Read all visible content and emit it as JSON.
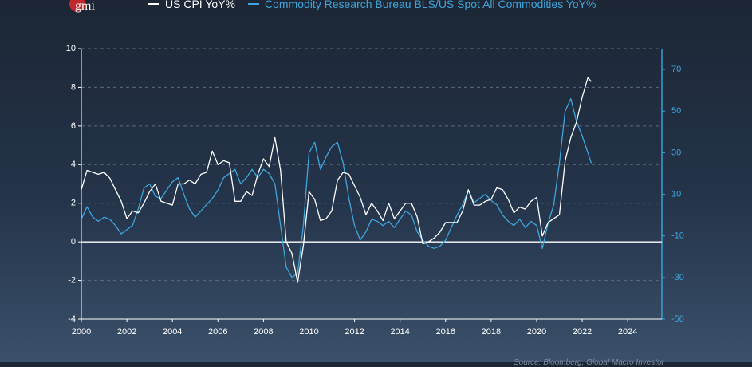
{
  "logo": {
    "text": "gmi",
    "color": "#c0282d"
  },
  "source": "Source: Bloomberg, Global Macro Investor",
  "chart_data": {
    "type": "line",
    "legend_position": "top",
    "series": [
      {
        "name": "US CPI YoY%",
        "axis": "left",
        "color": "#ffffff",
        "points": [
          [
            2000.0,
            2.7
          ],
          [
            2000.25,
            3.7
          ],
          [
            2000.5,
            3.6
          ],
          [
            2000.75,
            3.5
          ],
          [
            2001.0,
            3.6
          ],
          [
            2001.25,
            3.3
          ],
          [
            2001.5,
            2.7
          ],
          [
            2001.75,
            2.1
          ],
          [
            2002.0,
            1.2
          ],
          [
            2002.25,
            1.6
          ],
          [
            2002.5,
            1.5
          ],
          [
            2002.75,
            2.0
          ],
          [
            2003.0,
            2.6
          ],
          [
            2003.25,
            3.0
          ],
          [
            2003.5,
            2.1
          ],
          [
            2003.75,
            2.0
          ],
          [
            2004.0,
            1.9
          ],
          [
            2004.25,
            3.0
          ],
          [
            2004.5,
            3.0
          ],
          [
            2004.75,
            3.2
          ],
          [
            2005.0,
            3.0
          ],
          [
            2005.25,
            3.5
          ],
          [
            2005.5,
            3.6
          ],
          [
            2005.75,
            4.7
          ],
          [
            2006.0,
            4.0
          ],
          [
            2006.25,
            4.2
          ],
          [
            2006.5,
            4.1
          ],
          [
            2006.75,
            2.1
          ],
          [
            2007.0,
            2.1
          ],
          [
            2007.25,
            2.6
          ],
          [
            2007.5,
            2.4
          ],
          [
            2007.75,
            3.5
          ],
          [
            2008.0,
            4.3
          ],
          [
            2008.25,
            3.9
          ],
          [
            2008.5,
            5.4
          ],
          [
            2008.75,
            3.7
          ],
          [
            2009.0,
            0.0
          ],
          [
            2009.25,
            -0.6
          ],
          [
            2009.5,
            -2.1
          ],
          [
            2009.75,
            -0.2
          ],
          [
            2010.0,
            2.6
          ],
          [
            2010.25,
            2.2
          ],
          [
            2010.5,
            1.1
          ],
          [
            2010.75,
            1.2
          ],
          [
            2011.0,
            1.6
          ],
          [
            2011.25,
            3.2
          ],
          [
            2011.5,
            3.6
          ],
          [
            2011.75,
            3.5
          ],
          [
            2012.0,
            2.9
          ],
          [
            2012.25,
            2.3
          ],
          [
            2012.5,
            1.4
          ],
          [
            2012.75,
            2.0
          ],
          [
            2013.0,
            1.6
          ],
          [
            2013.25,
            1.1
          ],
          [
            2013.5,
            2.0
          ],
          [
            2013.75,
            1.2
          ],
          [
            2014.0,
            1.6
          ],
          [
            2014.25,
            2.0
          ],
          [
            2014.5,
            2.0
          ],
          [
            2014.75,
            1.3
          ],
          [
            2015.0,
            -0.1
          ],
          [
            2015.25,
            0.0
          ],
          [
            2015.5,
            0.2
          ],
          [
            2015.75,
            0.5
          ],
          [
            2016.0,
            1.0
          ],
          [
            2016.25,
            1.0
          ],
          [
            2016.5,
            1.0
          ],
          [
            2016.75,
            1.6
          ],
          [
            2017.0,
            2.7
          ],
          [
            2017.25,
            1.9
          ],
          [
            2017.5,
            1.9
          ],
          [
            2017.75,
            2.1
          ],
          [
            2018.0,
            2.2
          ],
          [
            2018.25,
            2.8
          ],
          [
            2018.5,
            2.7
          ],
          [
            2018.75,
            2.2
          ],
          [
            2019.0,
            1.5
          ],
          [
            2019.25,
            1.8
          ],
          [
            2019.5,
            1.7
          ],
          [
            2019.75,
            2.1
          ],
          [
            2020.0,
            2.3
          ],
          [
            2020.25,
            0.3
          ],
          [
            2020.5,
            1.0
          ],
          [
            2020.75,
            1.2
          ],
          [
            2021.0,
            1.4
          ],
          [
            2021.25,
            4.2
          ],
          [
            2021.5,
            5.4
          ],
          [
            2021.75,
            6.2
          ],
          [
            2022.0,
            7.5
          ],
          [
            2022.25,
            8.5
          ],
          [
            2022.4,
            8.3
          ]
        ]
      },
      {
        "name": "Commodity Research Bureau BLS/US Spot All Commodities YoY%",
        "axis": "right",
        "color": "#3fa5dc",
        "points": [
          [
            2000.0,
            -2
          ],
          [
            2000.25,
            4
          ],
          [
            2000.5,
            -1
          ],
          [
            2000.75,
            -3
          ],
          [
            2001.0,
            -1
          ],
          [
            2001.25,
            -2
          ],
          [
            2001.5,
            -5
          ],
          [
            2001.75,
            -9
          ],
          [
            2002.0,
            -7
          ],
          [
            2002.25,
            -5
          ],
          [
            2002.5,
            3
          ],
          [
            2002.75,
            13
          ],
          [
            2003.0,
            15
          ],
          [
            2003.25,
            9
          ],
          [
            2003.5,
            8
          ],
          [
            2003.75,
            12
          ],
          [
            2004.0,
            16
          ],
          [
            2004.25,
            18
          ],
          [
            2004.5,
            10
          ],
          [
            2004.75,
            3
          ],
          [
            2005.0,
            -1
          ],
          [
            2005.25,
            2
          ],
          [
            2005.5,
            5
          ],
          [
            2005.75,
            8
          ],
          [
            2006.0,
            12
          ],
          [
            2006.25,
            18
          ],
          [
            2006.5,
            20
          ],
          [
            2006.75,
            22
          ],
          [
            2007.0,
            15
          ],
          [
            2007.25,
            18
          ],
          [
            2007.5,
            22
          ],
          [
            2007.75,
            18
          ],
          [
            2008.0,
            22
          ],
          [
            2008.25,
            20
          ],
          [
            2008.5,
            15
          ],
          [
            2008.75,
            -5
          ],
          [
            2009.0,
            -25
          ],
          [
            2009.25,
            -30
          ],
          [
            2009.5,
            -28
          ],
          [
            2009.75,
            -5
          ],
          [
            2010.0,
            30
          ],
          [
            2010.25,
            35
          ],
          [
            2010.5,
            22
          ],
          [
            2010.75,
            28
          ],
          [
            2011.0,
            33
          ],
          [
            2011.25,
            35
          ],
          [
            2011.5,
            25
          ],
          [
            2011.75,
            8
          ],
          [
            2012.0,
            -5
          ],
          [
            2012.25,
            -12
          ],
          [
            2012.5,
            -8
          ],
          [
            2012.75,
            -2
          ],
          [
            2013.0,
            -3
          ],
          [
            2013.25,
            -5
          ],
          [
            2013.5,
            -3
          ],
          [
            2013.75,
            -6
          ],
          [
            2014.0,
            -2
          ],
          [
            2014.25,
            2
          ],
          [
            2014.5,
            0
          ],
          [
            2014.75,
            -8
          ],
          [
            2015.0,
            -12
          ],
          [
            2015.25,
            -15
          ],
          [
            2015.5,
            -16
          ],
          [
            2015.75,
            -15
          ],
          [
            2016.0,
            -12
          ],
          [
            2016.25,
            -6
          ],
          [
            2016.5,
            0
          ],
          [
            2016.75,
            5
          ],
          [
            2017.0,
            12
          ],
          [
            2017.25,
            6
          ],
          [
            2017.5,
            8
          ],
          [
            2017.75,
            10
          ],
          [
            2018.0,
            7
          ],
          [
            2018.25,
            5
          ],
          [
            2018.5,
            0
          ],
          [
            2018.75,
            -3
          ],
          [
            2019.0,
            -5
          ],
          [
            2019.25,
            -2
          ],
          [
            2019.5,
            -6
          ],
          [
            2019.75,
            -3
          ],
          [
            2020.0,
            -5
          ],
          [
            2020.25,
            -16
          ],
          [
            2020.5,
            -4
          ],
          [
            2020.75,
            5
          ],
          [
            2021.0,
            25
          ],
          [
            2021.25,
            50
          ],
          [
            2021.5,
            56
          ],
          [
            2021.75,
            45
          ],
          [
            2022.0,
            38
          ],
          [
            2022.25,
            30
          ],
          [
            2022.4,
            25
          ]
        ]
      }
    ],
    "x_axis": {
      "min": 2000,
      "max": 2025.5,
      "ticks": [
        "2000",
        "2002",
        "2004",
        "2006",
        "2008",
        "2010",
        "2012",
        "2014",
        "2016",
        "2018",
        "2020",
        "2022",
        "2024"
      ]
    },
    "y_left": {
      "min": -4,
      "max": 10,
      "ticks": [
        "-4",
        "-2",
        "0",
        "2",
        "4",
        "6",
        "8",
        "10"
      ]
    },
    "y_right": {
      "min": -50,
      "max": 80,
      "ticks": [
        "-50",
        "-30",
        "-10",
        "10",
        "30",
        "50",
        "70"
      ]
    },
    "grid": "dashed-horizontal"
  }
}
